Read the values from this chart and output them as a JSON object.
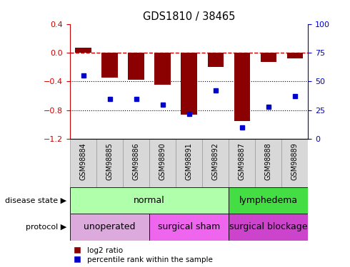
{
  "title": "GDS1810 / 38465",
  "samples": [
    "GSM98884",
    "GSM98885",
    "GSM98886",
    "GSM98890",
    "GSM98891",
    "GSM98892",
    "GSM98887",
    "GSM98888",
    "GSM98889"
  ],
  "log2_ratio": [
    0.07,
    -0.35,
    -0.38,
    -0.45,
    -0.86,
    -0.2,
    -0.95,
    -0.13,
    -0.08
  ],
  "percentile_rank": [
    55,
    35,
    35,
    30,
    22,
    42,
    10,
    28,
    37
  ],
  "bar_color": "#8B0000",
  "dot_color": "#0000CD",
  "left_ylim": [
    -1.2,
    0.4
  ],
  "left_yticks": [
    0.4,
    0.0,
    -0.4,
    -0.8,
    -1.2
  ],
  "right_yticks": [
    100,
    75,
    50,
    25,
    0
  ],
  "right_ylim": [
    0,
    100
  ],
  "disease_state_groups": [
    {
      "label": "normal",
      "start": 0,
      "end": 6,
      "color": "#B0FFAA"
    },
    {
      "label": "lymphedema",
      "start": 6,
      "end": 9,
      "color": "#44DD44"
    }
  ],
  "protocol_groups": [
    {
      "label": "unoperated",
      "start": 0,
      "end": 3,
      "color": "#DDAADD"
    },
    {
      "label": "surgical sham",
      "start": 3,
      "end": 6,
      "color": "#EE66EE"
    },
    {
      "label": "surgical blockage",
      "start": 6,
      "end": 9,
      "color": "#CC44CC"
    }
  ],
  "legend_red_label": "log2 ratio",
  "legend_blue_label": "percentile rank within the sample",
  "disease_state_label": "disease state",
  "protocol_label": "protocol",
  "hline_zero_color": "#CC0000",
  "dotted_line_color": "#000000",
  "tick_label_bg": "#D8D8D8",
  "tick_label_edge": "#999999"
}
